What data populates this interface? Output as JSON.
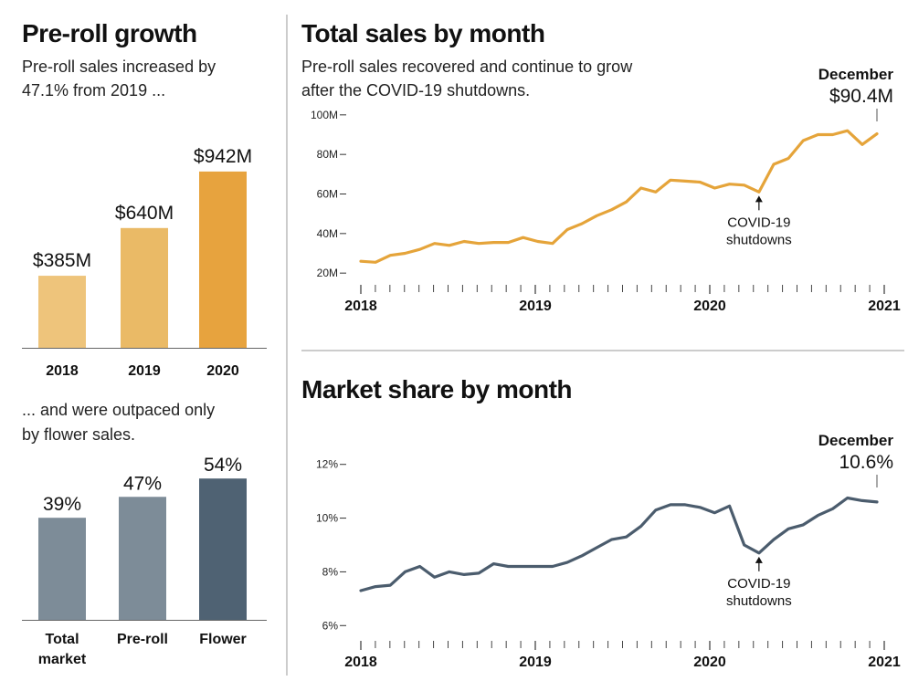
{
  "colors": {
    "gold_2018": "#EEC47B",
    "gold_2019": "#EABA66",
    "gold_2020": "#E7A33E",
    "gold_line": "#E5A43A",
    "slate_total": "#7D8C98",
    "slate_preroll": "#7D8C98",
    "slate_flower": "#4F6273",
    "slate_line": "#4B5C6D",
    "divider": "#bbbbbb"
  },
  "left": {
    "title": "Pre-roll growth",
    "subtitle_1": "Pre-roll sales increased by",
    "subtitle_2": "47.1% from 2019 ...",
    "subtitle_3": "... and were outpaced only",
    "subtitle_4": "by flower sales."
  },
  "right": {
    "sales_title": "Total sales by month",
    "sales_sub_1": "Pre-roll sales recovered and continue to grow",
    "sales_sub_2": "after the COVID-19 shutdowns.",
    "share_title": "Market share by month"
  },
  "chart_data": [
    {
      "type": "bar",
      "title": "Pre-roll growth",
      "categories": [
        "2018",
        "2019",
        "2020"
      ],
      "values": [
        385,
        640,
        942
      ],
      "value_labels": [
        "$385M",
        "$640M",
        "$942M"
      ],
      "unit": "million USD",
      "ylim": [
        0,
        1000
      ]
    },
    {
      "type": "bar",
      "categories": [
        "Total market",
        "Pre-roll",
        "Flower"
      ],
      "category_lines": [
        [
          "Total",
          "market"
        ],
        [
          "Pre-roll"
        ],
        [
          "Flower"
        ]
      ],
      "values": [
        39,
        47,
        54
      ],
      "value_labels": [
        "39%",
        "47%",
        "54%"
      ],
      "unit": "percent",
      "ylim": [
        0,
        60
      ]
    },
    {
      "type": "line",
      "title": "Total sales by month",
      "x_start": "2018-01",
      "x_ticks": [
        "2018",
        "2019",
        "2020",
        "2021"
      ],
      "y_ticks": [
        "20M",
        "40M",
        "60M",
        "80M",
        "100M"
      ],
      "ylim": [
        15,
        105
      ],
      "values": [
        26,
        25.5,
        29,
        30,
        32,
        35,
        34,
        36,
        35,
        35.5,
        35.5,
        38,
        36,
        35,
        42,
        45,
        49,
        52,
        56,
        63,
        61,
        67,
        66.5,
        66,
        63,
        65,
        64.5,
        61,
        75,
        78,
        87,
        90,
        90,
        92,
        85,
        90.4
      ],
      "annotation": {
        "month_index": 27,
        "lines": [
          "COVID-19",
          "shutdowns"
        ]
      },
      "end_label": {
        "title": "December",
        "value": "$90.4M"
      }
    },
    {
      "type": "line",
      "title": "Market share by month",
      "x_start": "2018-01",
      "x_ticks": [
        "2018",
        "2019",
        "2020",
        "2021"
      ],
      "y_ticks": [
        "6%",
        "8%",
        "10%",
        "12%"
      ],
      "ylim": [
        5.5,
        12.5
      ],
      "values": [
        7.3,
        7.45,
        7.5,
        8.0,
        8.2,
        7.8,
        8.0,
        7.9,
        7.95,
        8.3,
        8.2,
        8.2,
        8.2,
        8.2,
        8.35,
        8.6,
        8.9,
        9.2,
        9.3,
        9.7,
        10.3,
        10.5,
        10.5,
        10.4,
        10.2,
        10.45,
        9.0,
        8.7,
        9.2,
        9.6,
        9.75,
        10.1,
        10.35,
        10.75,
        10.65,
        10.6
      ],
      "annotation": {
        "month_index": 27,
        "lines": [
          "COVID-19",
          "shutdowns"
        ]
      },
      "end_label": {
        "title": "December",
        "value": "10.6%"
      }
    }
  ]
}
